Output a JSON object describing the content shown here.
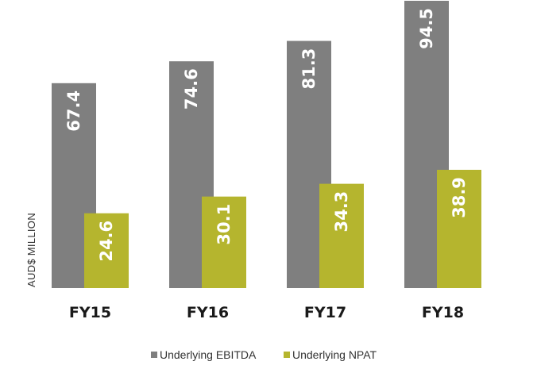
{
  "chart_data": {
    "type": "bar",
    "categories": [
      "FY15",
      "FY16",
      "FY17",
      "FY18"
    ],
    "series": [
      {
        "name": "Underlying EBITDA",
        "values": [
          67.4,
          74.6,
          81.3,
          94.5
        ],
        "color": "#7f7f7f"
      },
      {
        "name": "Underlying NPAT",
        "values": [
          24.6,
          30.1,
          34.3,
          38.9
        ],
        "color": "#b5b52e"
      }
    ],
    "ylabel": "AUD$ MILLION",
    "ylim": [
      0,
      94.5
    ],
    "grid": false,
    "legend": "bottom-center",
    "data_labels": true
  }
}
